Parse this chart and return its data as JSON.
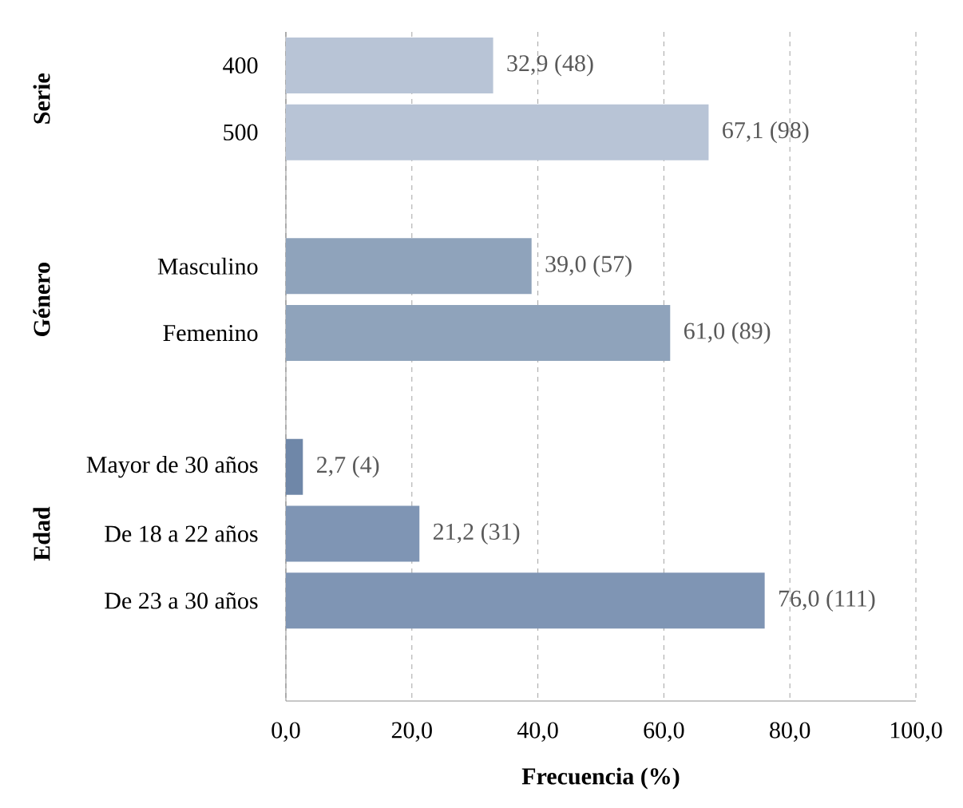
{
  "chart_data": {
    "type": "bar",
    "orientation": "horizontal",
    "xlabel": "Frecuencia (%)",
    "categories": [
      "400",
      "500",
      null,
      "Masculino",
      "Femenino",
      null,
      "Mayor de 30 años",
      "De 18 a 22 años",
      "De 23 a 30 años"
    ],
    "values": [
      32.9,
      67.1,
      null,
      39.0,
      61.0,
      null,
      2.7,
      21.2,
      76.0
    ],
    "colors": [
      "#b8c4d6",
      "#b8c4d6",
      null,
      "#8fa3bb",
      "#8fa3bb",
      null,
      "#6f87a8",
      "#7f95b4",
      "#7f95b4"
    ],
    "value_labels": [
      "32,9 (48)",
      "67,1 (98)",
      null,
      "39,0 (57)",
      "61,0 (89)",
      null,
      "2,7 (4)",
      "21,2 (31)",
      "76,0 (111)"
    ],
    "annotations": [
      "Serie",
      "Género",
      "Edad"
    ],
    "xlim": [
      0,
      100
    ],
    "xticks": [
      {
        "value": 0,
        "label": "0,0"
      },
      {
        "value": 20,
        "label": "20,0"
      },
      {
        "value": 40,
        "label": "40,0"
      },
      {
        "value": 60,
        "label": "60,0"
      },
      {
        "value": 80,
        "label": "80,0"
      },
      {
        "value": 100,
        "label": "100,0"
      }
    ],
    "grid": "x"
  }
}
